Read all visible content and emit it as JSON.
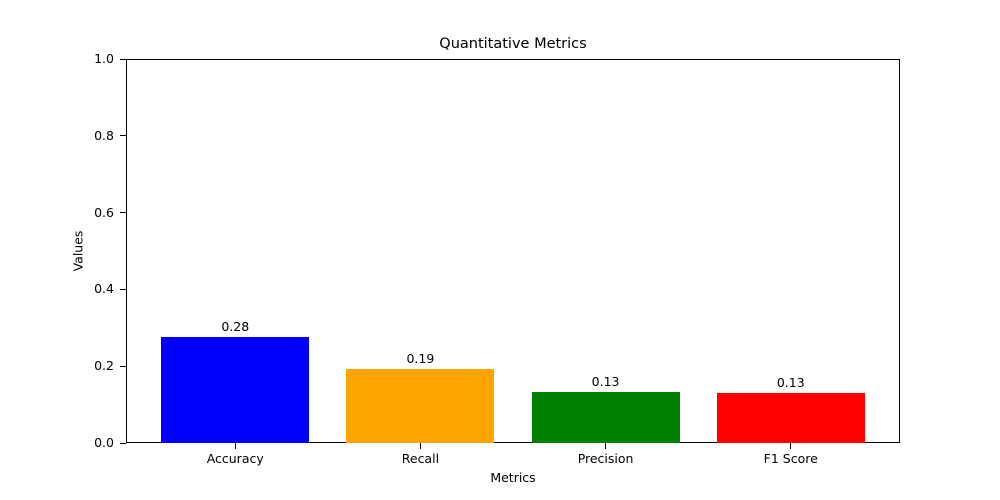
{
  "chart_data": {
    "type": "bar",
    "title": "Quantitative Metrics",
    "xlabel": "Metrics",
    "ylabel": "Values",
    "categories": [
      "Accuracy",
      "Recall",
      "Precision",
      "F1 Score"
    ],
    "values": [
      0.277,
      0.192,
      0.134,
      0.13
    ],
    "bar_labels": [
      "0.28",
      "0.19",
      "0.13",
      "0.13"
    ],
    "bar_colors": [
      "#0000ff",
      "#ffa500",
      "#008000",
      "#ff0000"
    ],
    "ylim": [
      0.0,
      1.0
    ],
    "yticks": [
      "0.0",
      "0.2",
      "0.4",
      "0.6",
      "0.8",
      "1.0"
    ],
    "grid": false,
    "legend": "none",
    "background": "#ffffff"
  }
}
